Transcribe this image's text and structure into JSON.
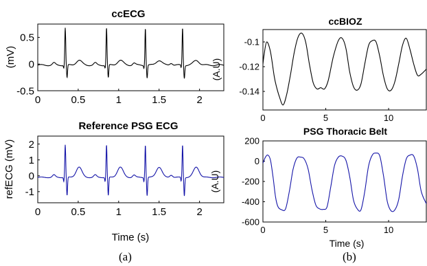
{
  "captions": {
    "a": "(a)",
    "b": "(b)"
  },
  "colors": {
    "black_trace": "#000000",
    "blue_trace": "#1414a8"
  },
  "chart_data": [
    {
      "id": "ccecg",
      "type": "line",
      "title": "ccECG",
      "xlabel": "",
      "ylabel": "(mV)",
      "xlim": [
        0,
        2.3
      ],
      "ylim": [
        -0.5,
        0.75
      ],
      "xticks": [
        "0",
        "0.5",
        "1",
        "1.5",
        "2"
      ],
      "yticks": [
        "-0.5",
        "0",
        "0.5"
      ],
      "grid": false,
      "series": [
        {
          "color": "#000000",
          "signal": "ecg",
          "baseline": -0.02,
          "beats": [
            0.34,
            0.85,
            1.33,
            1.79
          ],
          "r_peak": 0.68,
          "s_trough": -0.26,
          "q_dip": -0.07,
          "t_wave": 0.07,
          "p_wave": 0.02
        }
      ]
    },
    {
      "id": "refecg",
      "type": "line",
      "title": "Reference PSG ECG",
      "xlabel": "Time (s)",
      "ylabel": "refECG (mV)",
      "xlim": [
        0,
        2.3
      ],
      "ylim": [
        -1.7,
        2.5
      ],
      "xticks": [
        "0",
        "0.5",
        "1",
        "1.5",
        "2"
      ],
      "yticks": [
        "-1",
        "0",
        "1",
        "2"
      ],
      "grid": false,
      "series": [
        {
          "color": "#1414a8",
          "signal": "ecg",
          "baseline": -0.1,
          "beats": [
            0.34,
            0.85,
            1.33,
            1.79
          ],
          "r_peak": 1.95,
          "s_trough": -1.25,
          "q_dip": -0.35,
          "t_wave": 0.55,
          "p_wave": 0.05
        }
      ]
    },
    {
      "id": "ccbioz",
      "type": "line",
      "title": "ccBIOZ",
      "xlabel": "",
      "ylabel": "(A.U)",
      "xlim": [
        0,
        13
      ],
      "ylim": [
        -0.155,
        -0.09
      ],
      "xticks": [
        "0",
        "5",
        "10"
      ],
      "yticks": [
        "-0.1",
        "-0.12",
        "-0.14"
      ],
      "grid": false,
      "series": [
        {
          "color": "#000000",
          "x": [
            0,
            0.1,
            0.3,
            0.6,
            0.9,
            1.1,
            1.3,
            1.6,
            1.9,
            2.2,
            2.5,
            2.8,
            3.1,
            3.4,
            3.7,
            4.0,
            4.3,
            4.6,
            4.9,
            5.2,
            5.6,
            6.0,
            6.3,
            6.6,
            6.9,
            7.2,
            7.5,
            7.8,
            8.1,
            8.4,
            8.7,
            9.0,
            9.3,
            9.6,
            9.9,
            10.2,
            10.5,
            10.8,
            11.1,
            11.4,
            11.7,
            12.0,
            12.3,
            12.6,
            13.0
          ],
          "y": [
            -0.118,
            -0.11,
            -0.1,
            -0.108,
            -0.128,
            -0.137,
            -0.144,
            -0.151,
            -0.142,
            -0.126,
            -0.108,
            -0.096,
            -0.093,
            -0.1,
            -0.118,
            -0.133,
            -0.138,
            -0.137,
            -0.138,
            -0.131,
            -0.112,
            -0.099,
            -0.097,
            -0.105,
            -0.124,
            -0.136,
            -0.139,
            -0.134,
            -0.118,
            -0.103,
            -0.099,
            -0.1,
            -0.112,
            -0.128,
            -0.138,
            -0.139,
            -0.132,
            -0.118,
            -0.103,
            -0.097,
            -0.106,
            -0.118,
            -0.127,
            -0.126,
            -0.122
          ]
        }
      ]
    },
    {
      "id": "psgbelt",
      "type": "line",
      "title": "PSG Thoracic Belt",
      "xlabel": "Time (s)",
      "ylabel": "(A.U)",
      "xlim": [
        0,
        13
      ],
      "ylim": [
        -600,
        200
      ],
      "xticks": [
        "0",
        "5",
        "10"
      ],
      "yticks": [
        "200",
        "0",
        "-200",
        "-400",
        "-600"
      ],
      "grid": false,
      "series": [
        {
          "color": "#1414a8",
          "x": [
            0,
            0.2,
            0.4,
            0.6,
            0.8,
            1.0,
            1.2,
            1.5,
            1.8,
            2.1,
            2.4,
            2.7,
            3.0,
            3.3,
            3.6,
            3.9,
            4.2,
            4.5,
            4.8,
            5.1,
            5.4,
            5.7,
            6.0,
            6.3,
            6.6,
            6.9,
            7.2,
            7.5,
            7.8,
            8.1,
            8.4,
            8.7,
            9.0,
            9.3,
            9.6,
            9.9,
            10.2,
            10.5,
            10.8,
            11.1,
            11.4,
            11.7,
            12.0,
            12.3,
            12.6,
            13.0
          ],
          "y": [
            -20,
            40,
            60,
            10,
            -150,
            -350,
            -450,
            -480,
            -470,
            -300,
            -80,
            30,
            40,
            20,
            -80,
            -280,
            -430,
            -470,
            -475,
            -450,
            -250,
            -40,
            40,
            50,
            10,
            -150,
            -380,
            -470,
            -480,
            -300,
            -50,
            60,
            80,
            50,
            -150,
            -400,
            -490,
            -480,
            -380,
            -150,
            20,
            60,
            50,
            -80,
            -300,
            -420
          ]
        }
      ]
    }
  ]
}
